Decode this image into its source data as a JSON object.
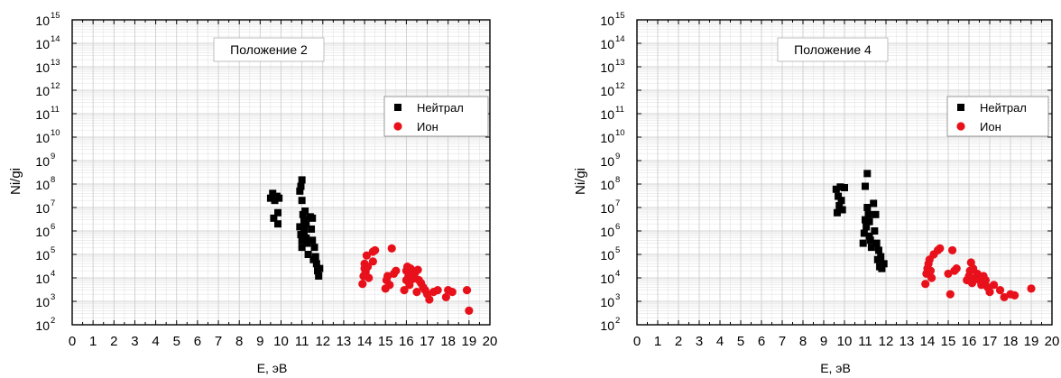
{
  "colors": {
    "neutral": "#000000",
    "ion": "#e8101a",
    "grid": "#c8c8c8",
    "frame": "#000000"
  },
  "chart_data": [
    {
      "type": "scatter",
      "annotation": "Положение 2",
      "xlabel": "E, эВ",
      "ylabel": "Ni/gi",
      "xlim": [
        0,
        20
      ],
      "ylim": [
        100,
        1000000000000000
      ],
      "y_scale": "log",
      "x_ticks": [
        "0",
        "1",
        "2",
        "3",
        "4",
        "5",
        "6",
        "7",
        "8",
        "9",
        "10",
        "11",
        "12",
        "13",
        "14",
        "15",
        "16",
        "17",
        "18",
        "19",
        "20"
      ],
      "y_ticks": [
        {
          "base": "10",
          "exp": "2"
        },
        {
          "base": "10",
          "exp": "3"
        },
        {
          "base": "10",
          "exp": "4"
        },
        {
          "base": "10",
          "exp": "5"
        },
        {
          "base": "10",
          "exp": "6"
        },
        {
          "base": "10",
          "exp": "7"
        },
        {
          "base": "10",
          "exp": "8"
        },
        {
          "base": "10",
          "exp": "9"
        },
        {
          "base": "10",
          "exp": "10"
        },
        {
          "base": "10",
          "exp": "11"
        },
        {
          "base": "10",
          "exp": "12"
        },
        {
          "base": "10",
          "exp": "13"
        },
        {
          "base": "10",
          "exp": "14"
        },
        {
          "base": "10",
          "exp": "15"
        }
      ],
      "grid": true,
      "legend_position": "right",
      "series": [
        {
          "name": "Нейтрал",
          "marker": "square",
          "color": "#000000",
          "points": [
            [
              9.5,
              25000000
            ],
            [
              9.6,
              40000000
            ],
            [
              9.65,
              3500000
            ],
            [
              9.7,
              20000000
            ],
            [
              9.8,
              30000000
            ],
            [
              9.85,
              2000000
            ],
            [
              9.85,
              6000000
            ],
            [
              9.9,
              25000000
            ],
            [
              10.9,
              50000000
            ],
            [
              10.95,
              80000000
            ],
            [
              11.0,
              150000000
            ],
            [
              11.0,
              20000000
            ],
            [
              11.05,
              5000000
            ],
            [
              10.9,
              1500000
            ],
            [
              10.95,
              700000
            ],
            [
              11.0,
              400000
            ],
            [
              11.0,
              200000
            ],
            [
              11.1,
              3000000
            ],
            [
              11.1,
              1000000
            ],
            [
              11.15,
              7000000
            ],
            [
              11.2,
              2000000
            ],
            [
              11.2,
              500000
            ],
            [
              11.25,
              300000
            ],
            [
              11.3,
              100000
            ],
            [
              11.4,
              4000000
            ],
            [
              11.45,
              1200000
            ],
            [
              11.5,
              3500000
            ],
            [
              11.5,
              400000
            ],
            [
              11.55,
              60000
            ],
            [
              11.6,
              200000
            ],
            [
              11.65,
              80000
            ],
            [
              11.7,
              40000
            ],
            [
              11.75,
              20000
            ],
            [
              11.8,
              12000
            ],
            [
              11.85,
              25000
            ]
          ]
        },
        {
          "name": "Ион",
          "marker": "circle",
          "color": "#e8101a",
          "points": [
            [
              13.9,
              5500
            ],
            [
              13.95,
              12000
            ],
            [
              14.0,
              25000
            ],
            [
              14.0,
              40000
            ],
            [
              14.05,
              18000
            ],
            [
              14.1,
              90000
            ],
            [
              14.15,
              30000
            ],
            [
              14.2,
              10000
            ],
            [
              14.4,
              130000
            ],
            [
              14.5,
              150000
            ],
            [
              14.4,
              50000
            ],
            [
              15.0,
              3500
            ],
            [
              15.05,
              8000
            ],
            [
              15.1,
              12000
            ],
            [
              15.2,
              5000
            ],
            [
              15.3,
              180000
            ],
            [
              15.4,
              15000
            ],
            [
              15.5,
              20000
            ],
            [
              15.9,
              3000
            ],
            [
              16.0,
              8000
            ],
            [
              16.0,
              20000
            ],
            [
              16.05,
              30000
            ],
            [
              16.1,
              12000
            ],
            [
              16.15,
              5000
            ],
            [
              16.2,
              25000
            ],
            [
              16.3,
              9000
            ],
            [
              16.4,
              15000
            ],
            [
              16.5,
              2500
            ],
            [
              16.55,
              22000
            ],
            [
              16.6,
              8000
            ],
            [
              16.7,
              6000
            ],
            [
              16.8,
              4000
            ],
            [
              16.9,
              3000
            ],
            [
              17.0,
              2000
            ],
            [
              17.1,
              1200
            ],
            [
              17.3,
              2500
            ],
            [
              17.5,
              3000
            ],
            [
              17.9,
              1500
            ],
            [
              18.0,
              3000
            ],
            [
              18.2,
              2500
            ],
            [
              18.9,
              3000
            ],
            [
              19.0,
              400
            ]
          ]
        }
      ]
    },
    {
      "type": "scatter",
      "annotation": "Положение 4",
      "xlabel": "E, эВ",
      "ylabel": "Ni/gi",
      "xlim": [
        0,
        20
      ],
      "ylim": [
        100,
        1000000000000000
      ],
      "y_scale": "log",
      "x_ticks": [
        "0",
        "1",
        "2",
        "3",
        "4",
        "5",
        "6",
        "7",
        "8",
        "9",
        "10",
        "11",
        "12",
        "13",
        "14",
        "15",
        "16",
        "17",
        "18",
        "19",
        "20"
      ],
      "y_ticks": [
        {
          "base": "10",
          "exp": "2"
        },
        {
          "base": "10",
          "exp": "3"
        },
        {
          "base": "10",
          "exp": "4"
        },
        {
          "base": "10",
          "exp": "5"
        },
        {
          "base": "10",
          "exp": "6"
        },
        {
          "base": "10",
          "exp": "7"
        },
        {
          "base": "10",
          "exp": "8"
        },
        {
          "base": "10",
          "exp": "9"
        },
        {
          "base": "10",
          "exp": "10"
        },
        {
          "base": "10",
          "exp": "11"
        },
        {
          "base": "10",
          "exp": "12"
        },
        {
          "base": "10",
          "exp": "13"
        },
        {
          "base": "10",
          "exp": "14"
        },
        {
          "base": "10",
          "exp": "15"
        }
      ],
      "grid": true,
      "legend_position": "right",
      "series": [
        {
          "name": "Нейтрал",
          "marker": "square",
          "color": "#000000",
          "points": [
            [
              9.6,
              60000000
            ],
            [
              9.65,
              6000000
            ],
            [
              9.7,
              30000000
            ],
            [
              9.75,
              12000000
            ],
            [
              9.8,
              75000000
            ],
            [
              9.85,
              20000000
            ],
            [
              9.9,
              8000000
            ],
            [
              10.0,
              70000000
            ],
            [
              10.9,
              300000
            ],
            [
              10.95,
              800000
            ],
            [
              11.0,
              80000000
            ],
            [
              11.0,
              3000000
            ],
            [
              11.05,
              1500000
            ],
            [
              11.1,
              280000000
            ],
            [
              11.1,
              10000000
            ],
            [
              11.15,
              5000000
            ],
            [
              11.2,
              2500000
            ],
            [
              11.2,
              600000
            ],
            [
              11.25,
              400000
            ],
            [
              11.3,
              200000
            ],
            [
              11.4,
              15000000
            ],
            [
              11.45,
              1000000
            ],
            [
              11.5,
              5000000
            ],
            [
              11.55,
              300000
            ],
            [
              11.6,
              60000
            ],
            [
              11.65,
              150000
            ],
            [
              11.7,
              30000
            ],
            [
              11.75,
              80000
            ],
            [
              11.8,
              25000
            ],
            [
              11.9,
              40000
            ]
          ]
        },
        {
          "name": "Ион",
          "marker": "circle",
          "color": "#e8101a",
          "points": [
            [
              13.9,
              5500
            ],
            [
              13.95,
              15000
            ],
            [
              14.0,
              25000
            ],
            [
              14.05,
              40000
            ],
            [
              14.1,
              60000
            ],
            [
              14.15,
              20000
            ],
            [
              14.2,
              10000
            ],
            [
              14.3,
              100000
            ],
            [
              14.5,
              150000
            ],
            [
              14.6,
              180000
            ],
            [
              15.0,
              15000
            ],
            [
              15.1,
              2000
            ],
            [
              15.2,
              150000
            ],
            [
              15.3,
              20000
            ],
            [
              15.4,
              25000
            ],
            [
              15.9,
              8000
            ],
            [
              16.0,
              12000
            ],
            [
              16.05,
              20000
            ],
            [
              16.1,
              45000
            ],
            [
              16.15,
              6000
            ],
            [
              16.2,
              25000
            ],
            [
              16.3,
              10000
            ],
            [
              16.4,
              15000
            ],
            [
              16.5,
              8000
            ],
            [
              16.6,
              5000
            ],
            [
              16.7,
              12000
            ],
            [
              16.8,
              8000
            ],
            [
              16.9,
              4000
            ],
            [
              17.0,
              2500
            ],
            [
              17.2,
              5000
            ],
            [
              17.5,
              3000
            ],
            [
              17.7,
              1500
            ],
            [
              18.0,
              2000
            ],
            [
              18.2,
              1800
            ],
            [
              19.0,
              3500
            ]
          ]
        }
      ]
    }
  ]
}
